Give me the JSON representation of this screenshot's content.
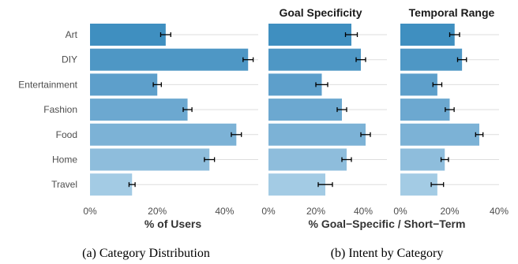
{
  "colors": {
    "Art": "#3f8fc0",
    "DIY": "#4e97c5",
    "Entertainment": "#5d9fcb",
    "Fashion": "#6ca8d0",
    "Food": "#7cb2d6",
    "Home": "#8ebddc",
    "Travel": "#a3cbe4",
    "gridline": "#dedede",
    "errorbar": "#000000"
  },
  "chart_data": [
    {
      "type": "bar",
      "orientation": "horizontal",
      "categories": [
        "Art",
        "DIY",
        "Entertainment",
        "Fashion",
        "Food",
        "Home",
        "Travel"
      ],
      "values": [
        22.5,
        47,
        20,
        29,
        43.5,
        35.5,
        12.5
      ],
      "errors": [
        1.5,
        1.5,
        1.2,
        1.3,
        1.5,
        1.5,
        0.9
      ],
      "xlim": [
        0,
        50
      ],
      "xticks": [
        "0%",
        "20%",
        "40%"
      ],
      "xlabel": "% of Users",
      "title": "",
      "grid": true,
      "legend": "none"
    },
    {
      "type": "bar",
      "orientation": "horizontal",
      "categories": [
        "Art",
        "DIY",
        "Entertainment",
        "Fashion",
        "Food",
        "Home",
        "Travel"
      ],
      "values": [
        35,
        39,
        22.5,
        31,
        41,
        33,
        24
      ],
      "errors": [
        2.5,
        2.0,
        2.5,
        2.0,
        2.0,
        2.0,
        3.0
      ],
      "xlim": [
        0,
        50
      ],
      "xticks": [
        "0%",
        "20%",
        "40%"
      ],
      "title": "Goal Specificity",
      "grid": true,
      "legend": "none"
    },
    {
      "type": "bar",
      "orientation": "horizontal",
      "categories": [
        "Art",
        "DIY",
        "Entertainment",
        "Fashion",
        "Food",
        "Home",
        "Travel"
      ],
      "values": [
        22,
        25,
        15,
        20,
        32,
        18,
        15
      ],
      "errors": [
        2.0,
        1.8,
        1.8,
        1.8,
        1.5,
        1.5,
        2.5
      ],
      "xlim": [
        0,
        40
      ],
      "xticks": [
        "0%",
        "20%",
        "40%"
      ],
      "title": "Temporal Range",
      "grid": true,
      "legend": "none"
    }
  ],
  "shared_xlabel_b": "% Goal−Specific / Short−Term",
  "captions": {
    "a": "(a) Category Distribution",
    "b": "(b) Intent by Category"
  }
}
